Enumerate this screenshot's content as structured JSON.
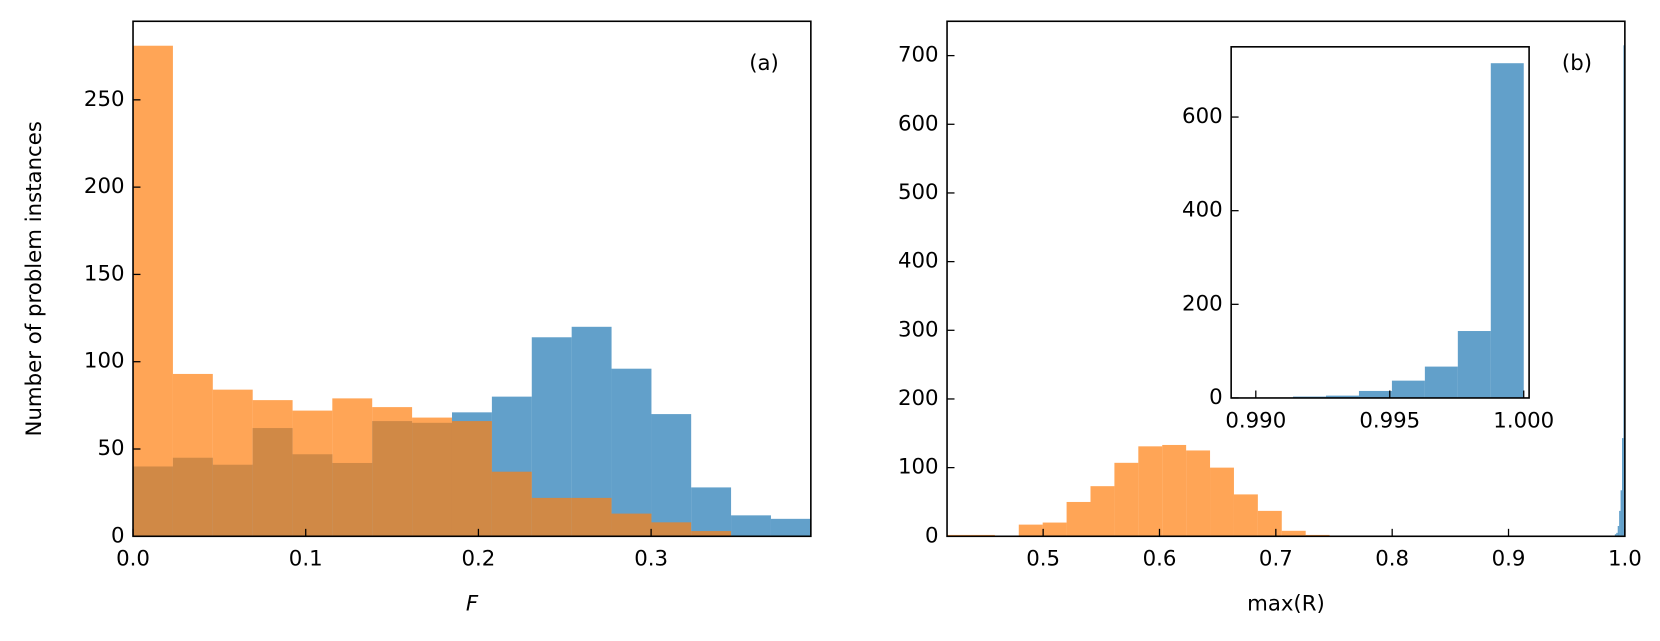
{
  "chart_data": [
    {
      "type": "histogram",
      "xlabel": "F",
      "ylabel": "Number of problem instances",
      "annotation": "(a)",
      "xlim": [
        0,
        0.3925
      ],
      "ylim": [
        0,
        295
      ],
      "xticks": [
        {
          "value": 0,
          "label": "0.0"
        },
        0.1,
        0.2,
        0.3
      ],
      "yticks": [
        0,
        50,
        100,
        150,
        200,
        250
      ],
      "opacity": 0.7,
      "series": [
        {
          "color": "#1f77b4",
          "bins": [
            0,
            0.0231,
            0.0462,
            0.0693,
            0.0924,
            0.1154,
            0.1385,
            0.1616,
            0.1847,
            0.2078,
            0.2309,
            0.254,
            0.2771,
            0.3002,
            0.3232,
            0.3463,
            0.3694,
            0.3925
          ],
          "values": [
            40,
            45,
            41,
            62,
            47,
            42,
            66,
            65,
            71,
            80,
            114,
            120,
            96,
            70,
            28,
            12,
            10
          ]
        },
        {
          "color": "#ff7f0e",
          "bins": [
            0,
            0.0231,
            0.0462,
            0.0693,
            0.0924,
            0.1154,
            0.1385,
            0.1616,
            0.1847,
            0.2078,
            0.2309,
            0.254,
            0.2771,
            0.3002,
            0.3232,
            0.3463,
            0.3694,
            0.3925
          ],
          "values": [
            281,
            93,
            84,
            78,
            72,
            79,
            74,
            68,
            66,
            37,
            22,
            22,
            13,
            8,
            3,
            0,
            0
          ]
        }
      ]
    },
    {
      "type": "histogram",
      "xlabel": "max(R)",
      "annotation": "(b)",
      "xlim": [
        0.4174,
        1.0
      ],
      "ylim": [
        0,
        750
      ],
      "xticks": [
        0.5,
        0.6,
        0.7,
        0.8,
        0.9,
        {
          "value": 1,
          "label": "1.0"
        }
      ],
      "yticks": [
        0,
        100,
        200,
        300,
        400,
        500,
        600,
        700
      ],
      "opacity": 0.7,
      "series": [
        {
          "color": "#ff7f0e",
          "bins": [
            0.4174,
            0.43795,
            0.4585,
            0.47905,
            0.4996,
            0.52015,
            0.5407,
            0.56125,
            0.5818,
            0.60235,
            0.6229,
            0.64345,
            0.664,
            0.68455,
            0.7051,
            0.72565,
            0.7462
          ],
          "values": [
            2,
            2,
            0,
            17,
            20,
            50,
            73,
            107,
            131,
            133,
            125,
            100,
            61,
            37,
            8,
            2
          ]
        },
        {
          "color": "#1f77b4",
          "bins": [
            0.99139,
            0.99262,
            0.99385,
            0.99508,
            0.99631,
            0.99754,
            0.99877,
            1.0
          ],
          "values": [
            3,
            5,
            15,
            37,
            67,
            143,
            715
          ]
        }
      ]
    },
    {
      "type": "histogram",
      "xlim": [
        0.98908,
        1.0002
      ],
      "ylim": [
        0,
        750
      ],
      "xticks": [
        {
          "value": 0.99,
          "label": "0.990"
        },
        0.995,
        {
          "value": 1,
          "label": "1.000"
        }
      ],
      "yticks": [
        0,
        200,
        400,
        600
      ],
      "opacity": 0.7,
      "series": [
        {
          "color": "#1f77b4",
          "bins": [
            0.99139,
            0.99262,
            0.99385,
            0.99508,
            0.99631,
            0.99754,
            0.99877,
            1.0
          ],
          "values": [
            3,
            5,
            15,
            37,
            67,
            143,
            715
          ]
        }
      ]
    }
  ]
}
